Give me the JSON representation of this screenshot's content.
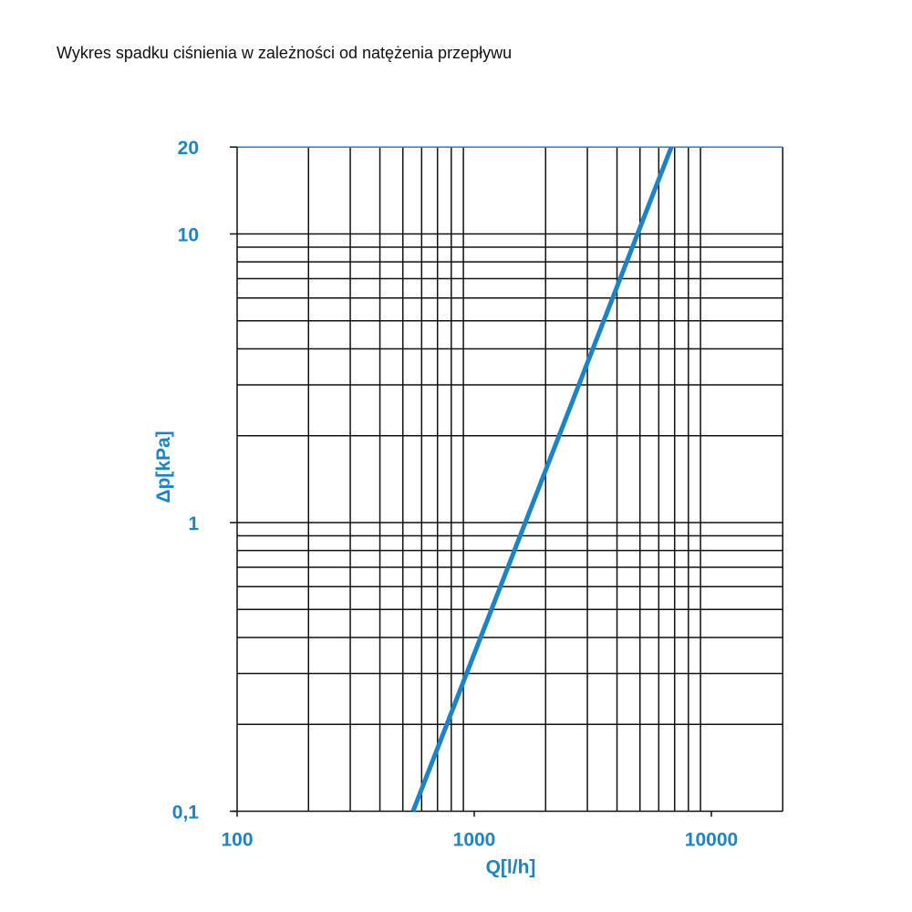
{
  "title": "Wykres spadku ciśnienia w zależności od natężenia przepływu",
  "colors": {
    "accent": "#1a84c7",
    "grid": "#111111"
  },
  "chart_data": {
    "type": "line",
    "xscale": "log",
    "yscale": "log",
    "xlabel": "Q[l/h]",
    "ylabel": "Δp[kPa]",
    "xlim": [
      100,
      20000
    ],
    "ylim": [
      0.1,
      20
    ],
    "grid": true,
    "x_tick_labels": [
      {
        "v": 100,
        "t": "100"
      },
      {
        "v": 1000,
        "t": "1000"
      },
      {
        "v": 10000,
        "t": "10000"
      }
    ],
    "y_tick_labels": [
      {
        "v": 0.1,
        "t": "0,1"
      },
      {
        "v": 1,
        "t": "1"
      },
      {
        "v": 10,
        "t": "10"
      },
      {
        "v": 20,
        "t": "20"
      }
    ],
    "series": [
      {
        "x": [
          552,
          6780
        ],
        "y": [
          0.1,
          20
        ]
      }
    ]
  }
}
